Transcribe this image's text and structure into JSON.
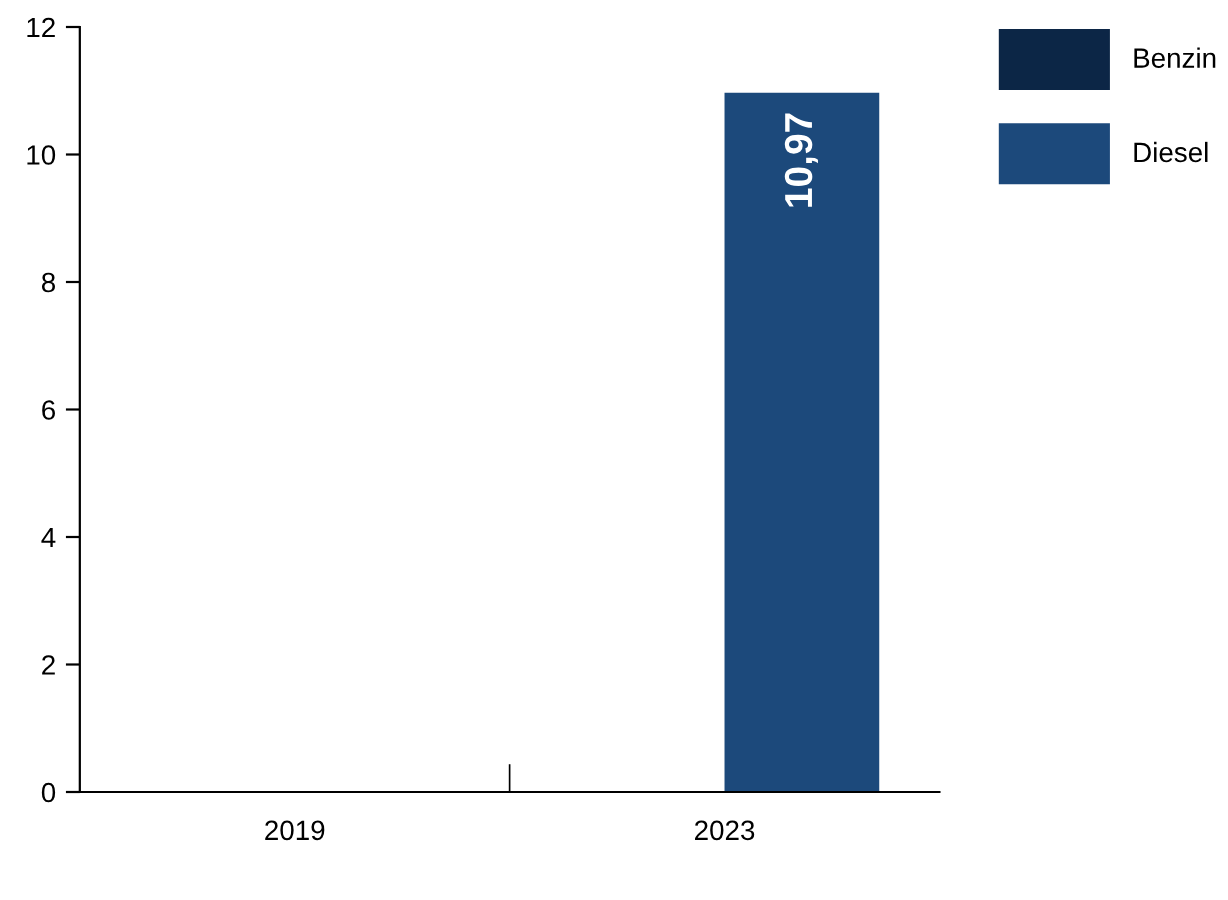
{
  "chart_data": {
    "type": "bar",
    "categories": [
      "2019",
      "2023"
    ],
    "series": [
      {
        "name": "Benzin",
        "color": "#0c2646",
        "values": [
          0,
          0
        ]
      },
      {
        "name": "Diesel",
        "color": "#1c497b",
        "values": [
          0,
          10.97
        ],
        "value_labels": [
          null,
          "10,97"
        ]
      }
    ],
    "ylim": [
      0,
      12
    ],
    "yticks": [
      0,
      2,
      4,
      6,
      8,
      10,
      12
    ],
    "grid": false,
    "legend": "top right"
  }
}
